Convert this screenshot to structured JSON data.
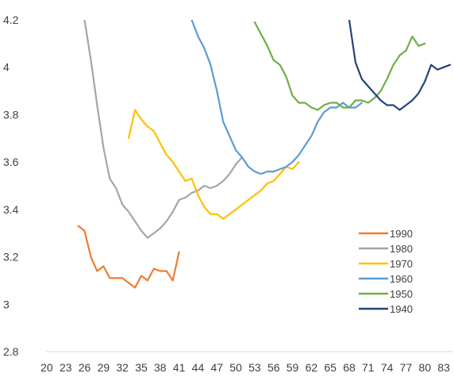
{
  "chart_data": {
    "type": "line",
    "title": "",
    "xlabel": "",
    "ylabel": "",
    "xlim": [
      18.5,
      84.5
    ],
    "ylim": [
      2.8,
      4.2
    ],
    "x_tick_labels": [
      "20",
      "23",
      "26",
      "29",
      "32",
      "35",
      "38",
      "41",
      "44",
      "47",
      "50",
      "53",
      "56",
      "59",
      "62",
      "65",
      "68",
      "71",
      "74",
      "77",
      "80",
      "83"
    ],
    "x_ticks": [
      20,
      23,
      26,
      29,
      32,
      35,
      38,
      41,
      44,
      47,
      50,
      53,
      56,
      59,
      62,
      65,
      68,
      71,
      74,
      77,
      80,
      83
    ],
    "y_tick_labels": [
      "2.8",
      "3",
      "3.2",
      "3.4",
      "3.6",
      "3.8",
      "4",
      "4.2"
    ],
    "y_ticks": [
      2.8,
      3.0,
      3.2,
      3.4,
      3.6,
      3.8,
      4.0,
      4.2
    ],
    "grid": false,
    "legend_position": "bottom-right",
    "series": [
      {
        "name": "1990",
        "color": "#ED7D31",
        "x": [
          25,
          26,
          27,
          28,
          29,
          30,
          31,
          32,
          33,
          34,
          35,
          36,
          37,
          38,
          39,
          40,
          41
        ],
        "y": [
          3.33,
          3.31,
          3.2,
          3.14,
          3.16,
          3.11,
          3.11,
          3.11,
          3.09,
          3.07,
          3.12,
          3.1,
          3.15,
          3.14,
          3.14,
          3.1,
          3.22
        ]
      },
      {
        "name": "1980",
        "color": "#A5A5A5",
        "x": [
          26,
          27,
          28,
          29,
          30,
          31,
          32,
          33,
          34,
          35,
          36,
          37,
          38,
          39,
          40,
          41,
          42,
          43,
          44,
          45,
          46,
          47,
          48,
          49,
          50,
          51
        ],
        "y": [
          4.2,
          4.03,
          3.84,
          3.66,
          3.53,
          3.49,
          3.42,
          3.39,
          3.35,
          3.31,
          3.28,
          3.3,
          3.32,
          3.35,
          3.39,
          3.44,
          3.45,
          3.47,
          3.48,
          3.5,
          3.49,
          3.5,
          3.52,
          3.55,
          3.59,
          3.62
        ]
      },
      {
        "name": "1970",
        "color": "#FFC000",
        "x": [
          33,
          34,
          35,
          36,
          37,
          38,
          39,
          40,
          41,
          42,
          43,
          44,
          45,
          46,
          47,
          48,
          49,
          50,
          51,
          52,
          53,
          54,
          55,
          56,
          57,
          58,
          59,
          60
        ],
        "y": [
          3.7,
          3.82,
          3.78,
          3.75,
          3.73,
          3.68,
          3.63,
          3.6,
          3.56,
          3.52,
          3.53,
          3.46,
          3.41,
          3.38,
          3.38,
          3.36,
          3.38,
          3.4,
          3.42,
          3.44,
          3.46,
          3.48,
          3.51,
          3.52,
          3.55,
          3.58,
          3.57,
          3.6
        ]
      },
      {
        "name": "1960",
        "color": "#5B9BD5",
        "x": [
          43,
          44,
          45,
          46,
          47,
          48,
          49,
          50,
          51,
          52,
          53,
          54,
          55,
          56,
          57,
          58,
          59,
          60,
          61,
          62,
          63,
          64,
          65,
          66,
          67,
          68,
          69,
          70
        ],
        "y": [
          4.2,
          4.13,
          4.08,
          4.01,
          3.9,
          3.77,
          3.71,
          3.65,
          3.62,
          3.58,
          3.56,
          3.55,
          3.56,
          3.56,
          3.57,
          3.58,
          3.6,
          3.63,
          3.67,
          3.71,
          3.77,
          3.81,
          3.83,
          3.83,
          3.85,
          3.83,
          3.83,
          3.85
        ]
      },
      {
        "name": "1950",
        "color": "#70AD47",
        "x": [
          53,
          54,
          55,
          56,
          57,
          58,
          59,
          60,
          61,
          62,
          63,
          64,
          65,
          66,
          67,
          68,
          69,
          70,
          71,
          72,
          73,
          74,
          75,
          76,
          77,
          78,
          79,
          80
        ],
        "y": [
          4.19,
          4.14,
          4.09,
          4.03,
          4.01,
          3.96,
          3.88,
          3.85,
          3.85,
          3.83,
          3.82,
          3.84,
          3.85,
          3.85,
          3.83,
          3.83,
          3.86,
          3.86,
          3.85,
          3.87,
          3.9,
          3.95,
          4.01,
          4.05,
          4.07,
          4.13,
          4.09,
          4.1
        ]
      },
      {
        "name": "1940",
        "color": "#264478",
        "x": [
          68,
          69,
          70,
          71,
          72,
          73,
          74,
          75,
          76,
          77,
          78,
          79,
          80,
          81,
          82,
          83,
          84
        ],
        "y": [
          4.2,
          4.02,
          3.95,
          3.92,
          3.89,
          3.86,
          3.84,
          3.84,
          3.82,
          3.84,
          3.86,
          3.89,
          3.94,
          4.01,
          3.99,
          4.0,
          4.01
        ]
      }
    ],
    "legend_order": [
      "1990",
      "1980",
      "1970",
      "1960",
      "1950",
      "1940"
    ]
  }
}
